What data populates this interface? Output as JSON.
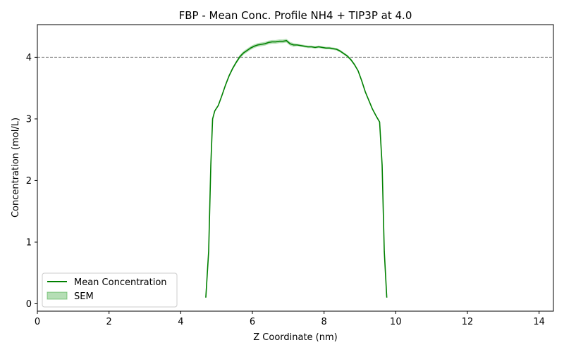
{
  "chart_data": {
    "type": "line",
    "title": "FBP - Mean Conc. Profile NH4 + TIP3P at 4.0",
    "xlabel": "Z Coordinate (nm)",
    "ylabel": "Concentration (mol/L)",
    "xlim": [
      0,
      14.4
    ],
    "ylim": [
      -0.12,
      4.53
    ],
    "x_ticks": [
      "0",
      "2",
      "4",
      "6",
      "8",
      "10",
      "12",
      "14"
    ],
    "y_ticks": [
      "0",
      "1",
      "2",
      "3",
      "4"
    ],
    "reference_line": {
      "y": 4.0,
      "style": "dashed",
      "color": "#808080"
    },
    "legend": {
      "position": "lower-left",
      "entries": [
        "Mean Concentration",
        "SEM"
      ]
    },
    "colors": {
      "line": "#008000",
      "band": "#2ca02c",
      "reference": "#808080"
    },
    "grid": false,
    "series": [
      {
        "name": "Mean Concentration",
        "x": [
          4.7,
          4.78,
          4.84,
          4.89,
          4.95,
          5.05,
          5.15,
          5.25,
          5.35,
          5.45,
          5.55,
          5.65,
          5.75,
          5.85,
          5.95,
          6.05,
          6.15,
          6.25,
          6.35,
          6.45,
          6.55,
          6.65,
          6.75,
          6.85,
          6.95,
          7.05,
          7.15,
          7.25,
          7.35,
          7.45,
          7.55,
          7.65,
          7.75,
          7.85,
          7.95,
          8.05,
          8.15,
          8.25,
          8.35,
          8.45,
          8.55,
          8.65,
          8.75,
          8.85,
          8.95,
          9.05,
          9.15,
          9.25,
          9.35,
          9.45,
          9.55,
          9.62,
          9.68,
          9.75
        ],
        "y": [
          0.1,
          0.85,
          2.25,
          3.0,
          3.13,
          3.22,
          3.38,
          3.55,
          3.7,
          3.82,
          3.92,
          4.01,
          4.07,
          4.11,
          4.15,
          4.18,
          4.2,
          4.21,
          4.22,
          4.24,
          4.25,
          4.25,
          4.26,
          4.26,
          4.27,
          4.22,
          4.2,
          4.2,
          4.19,
          4.18,
          4.17,
          4.17,
          4.16,
          4.17,
          4.16,
          4.15,
          4.15,
          4.14,
          4.13,
          4.1,
          4.06,
          4.02,
          3.96,
          3.88,
          3.78,
          3.62,
          3.44,
          3.3,
          3.16,
          3.05,
          2.95,
          2.25,
          0.85,
          0.1
        ],
        "sem": [
          0.0,
          0.0,
          0.0,
          0.0,
          0.01,
          0.01,
          0.015,
          0.02,
          0.02,
          0.025,
          0.025,
          0.03,
          0.03,
          0.03,
          0.03,
          0.03,
          0.03,
          0.03,
          0.03,
          0.03,
          0.03,
          0.03,
          0.03,
          0.03,
          0.03,
          0.03,
          0.03,
          0.02,
          0.02,
          0.02,
          0.02,
          0.02,
          0.02,
          0.02,
          0.02,
          0.02,
          0.02,
          0.02,
          0.02,
          0.02,
          0.02,
          0.02,
          0.02,
          0.02,
          0.015,
          0.015,
          0.01,
          0.01,
          0.01,
          0.01,
          0.0,
          0.0,
          0.0,
          0.0
        ]
      }
    ]
  }
}
